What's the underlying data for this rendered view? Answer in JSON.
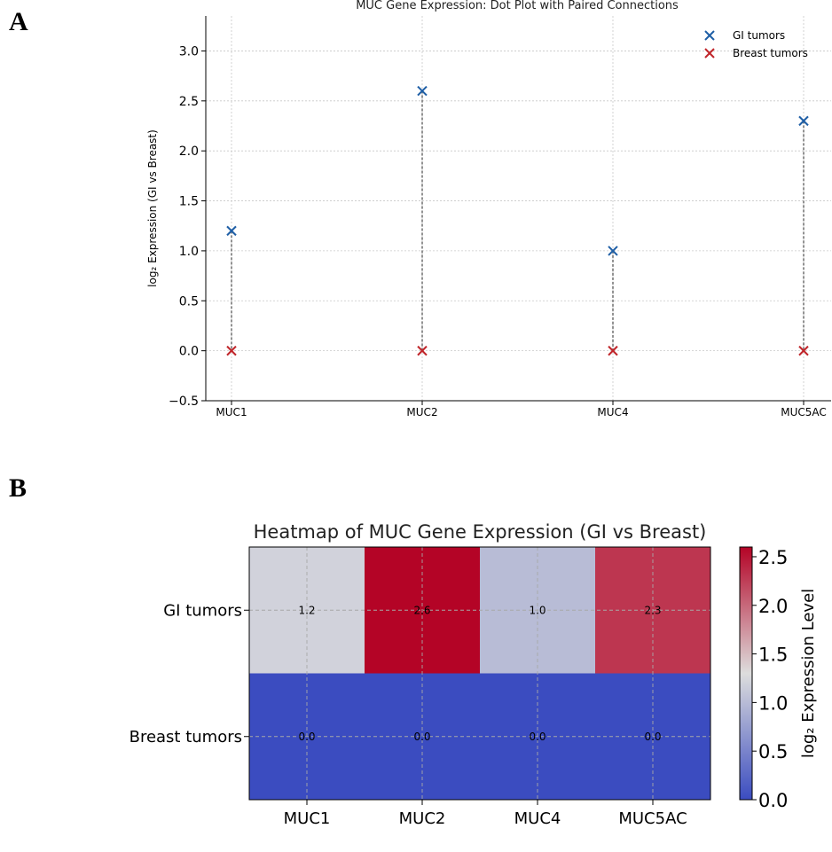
{
  "panels": {
    "a": "A",
    "b": "B"
  },
  "chart_data": [
    {
      "type": "scatter",
      "title": "MUC Gene Expression: Dot Plot with Paired Connections",
      "xlabel": "",
      "ylabel": "log₂ Expression (GI vs Breast)",
      "categories": [
        "MUC1",
        "MUC2",
        "MUC4",
        "MUC5AC"
      ],
      "ylim": [
        -0.5,
        3.35
      ],
      "yticks": [
        "−0.5",
        "0.0",
        "0.5",
        "1.0",
        "1.5",
        "2.0",
        "2.5",
        "3.0"
      ],
      "grid": true,
      "legend": "top-right",
      "paired_connections": true,
      "series": [
        {
          "name": "GI tumors",
          "values": [
            1.2,
            2.6,
            1.0,
            2.3
          ],
          "color": "#1f5fa6",
          "marker": "x"
        },
        {
          "name": "Breast tumors",
          "values": [
            0.0,
            0.0,
            0.0,
            0.0
          ],
          "color": "#c0262b",
          "marker": "x"
        }
      ]
    },
    {
      "type": "heatmap",
      "title": "Heatmap of MUC Gene Expression (GI vs Breast)",
      "columns": [
        "MUC1",
        "MUC2",
        "MUC4",
        "MUC5AC"
      ],
      "rows": [
        "GI tumors",
        "Breast tumors"
      ],
      "values": [
        [
          1.2,
          2.6,
          1.0,
          2.3
        ],
        [
          0.0,
          0.0,
          0.0,
          0.0
        ]
      ],
      "cell_labels": [
        [
          "1.2",
          "2.6",
          "1.0",
          "2.3"
        ],
        [
          "0.0",
          "0.0",
          "0.0",
          "0.0"
        ]
      ],
      "colormap": "coolwarm",
      "colorbar": {
        "label": "log₂ Expression Level",
        "range": [
          0.0,
          2.6
        ],
        "ticks": [
          "0.0",
          "0.5",
          "1.0",
          "1.5",
          "2.0",
          "2.5"
        ]
      },
      "grid": true
    }
  ]
}
